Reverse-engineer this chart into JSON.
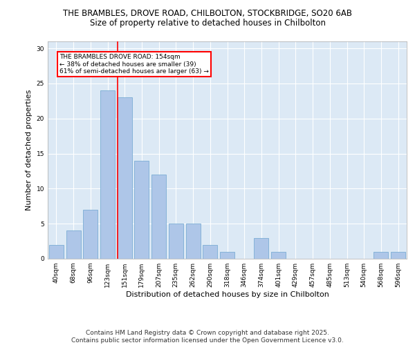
{
  "title_line1": "THE BRAMBLES, DROVE ROAD, CHILBOLTON, STOCKBRIDGE, SO20 6AB",
  "title_line2": "Size of property relative to detached houses in Chilbolton",
  "xlabel": "Distribution of detached houses by size in Chilbolton",
  "ylabel": "Number of detached properties",
  "categories": [
    "40sqm",
    "68sqm",
    "96sqm",
    "123sqm",
    "151sqm",
    "179sqm",
    "207sqm",
    "235sqm",
    "262sqm",
    "290sqm",
    "318sqm",
    "346sqm",
    "374sqm",
    "401sqm",
    "429sqm",
    "457sqm",
    "485sqm",
    "513sqm",
    "540sqm",
    "568sqm",
    "596sqm"
  ],
  "values": [
    2,
    4,
    7,
    24,
    23,
    14,
    12,
    5,
    5,
    2,
    1,
    0,
    3,
    1,
    0,
    0,
    0,
    0,
    0,
    1,
    1
  ],
  "bar_color": "#aec6e8",
  "bar_edge_color": "#7aadd4",
  "vline_color": "red",
  "vline_x": 3.57,
  "annotation_text": "THE BRAMBLES DROVE ROAD: 154sqm\n← 38% of detached houses are smaller (39)\n61% of semi-detached houses are larger (63) →",
  "ylim": [
    0,
    31
  ],
  "yticks": [
    0,
    5,
    10,
    15,
    20,
    25,
    30
  ],
  "background_color": "#dce9f5",
  "footer_text": "Contains HM Land Registry data © Crown copyright and database right 2025.\nContains public sector information licensed under the Open Government Licence v3.0.",
  "title_fontsize": 8.5,
  "subtitle_fontsize": 8.5,
  "axis_label_fontsize": 8,
  "tick_fontsize": 6.5,
  "footer_fontsize": 6.5,
  "annotation_fontsize": 6.5
}
